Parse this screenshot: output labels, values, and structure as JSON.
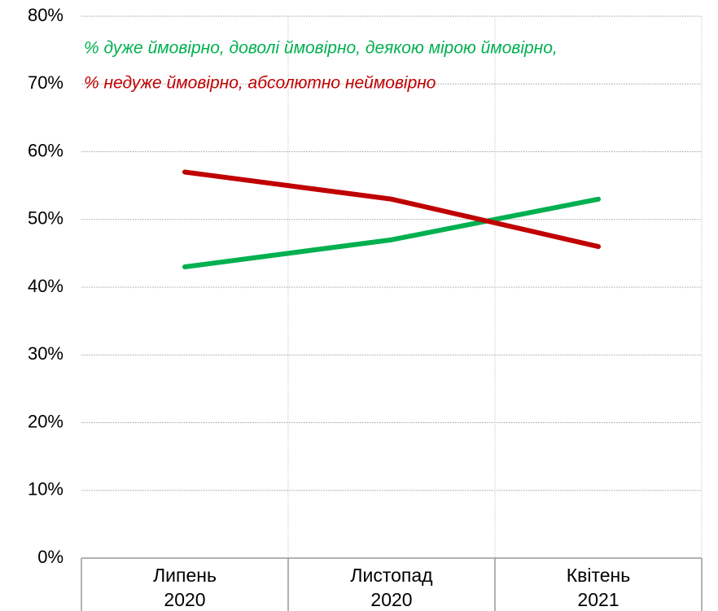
{
  "chart_data": {
    "type": "line",
    "categories": [
      "Липень\n2020",
      "Листопад\n2020",
      "Квітень\n2021"
    ],
    "series": [
      {
        "name": "% дуже ймовірно, доволі ймовірно, деякою мірою ймовірно,",
        "color": "#00b050",
        "values": [
          43,
          47,
          53
        ]
      },
      {
        "name": "% недуже ймовірно, абсолютно неймовірно",
        "color": "#c00000",
        "values": [
          57,
          53,
          46
        ]
      }
    ],
    "ylim": [
      0,
      80
    ],
    "yticks": [
      {
        "value": 0,
        "label": "0%"
      },
      {
        "value": 10,
        "label": "10%"
      },
      {
        "value": 20,
        "label": "20%"
      },
      {
        "value": 30,
        "label": "30%"
      },
      {
        "value": 40,
        "label": "40%"
      },
      {
        "value": 50,
        "label": "50%"
      },
      {
        "value": 60,
        "label": "60%"
      },
      {
        "value": 70,
        "label": "70%"
      },
      {
        "value": 80,
        "label": "80%"
      }
    ],
    "grid": true
  }
}
